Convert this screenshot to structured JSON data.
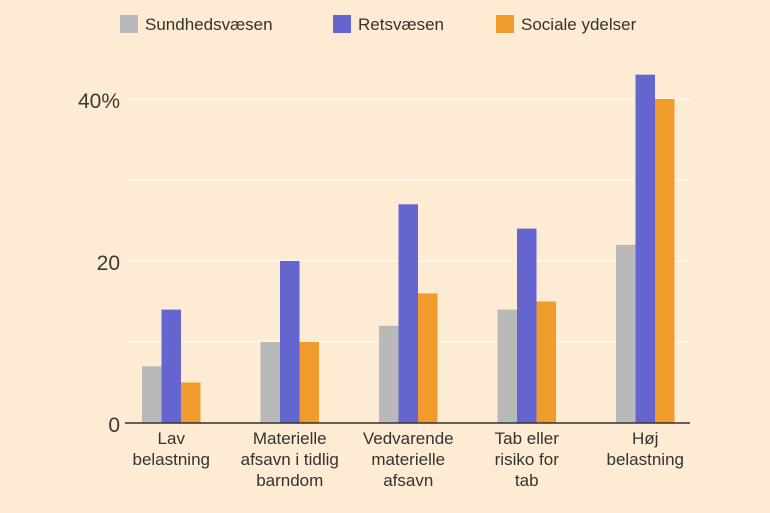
{
  "chart_data": {
    "type": "bar",
    "categories": [
      [
        "Lav",
        "belastning"
      ],
      [
        "Materielle",
        "afsavn i tidlig",
        "barndom"
      ],
      [
        "Vedvarende",
        "materielle",
        "afsavn"
      ],
      [
        "Tab eller",
        "risiko for",
        "tab"
      ],
      [
        "Høj",
        "belastning"
      ]
    ],
    "series": [
      {
        "name": "Sundhedsvæsen",
        "color": "#b9b9b9",
        "values": [
          7,
          10,
          12,
          14,
          22
        ]
      },
      {
        "name": "Retsvæsen",
        "color": "#6465cf",
        "values": [
          14,
          20,
          27,
          24,
          43
        ]
      },
      {
        "name": "Sociale ydelser",
        "color": "#f09c2c",
        "values": [
          5,
          10,
          16,
          15,
          40
        ]
      }
    ],
    "yticks": [
      {
        "value": 0,
        "label": "0"
      },
      {
        "value": 20,
        "label": "20"
      },
      {
        "value": 40,
        "label": "40%"
      }
    ],
    "gridlines": [
      10,
      20,
      30,
      40
    ],
    "ylim": [
      0,
      45
    ],
    "legend_position": "top",
    "background": "#fdebd3",
    "grid_color": "#fff6ea",
    "axis_color": "#333333"
  }
}
